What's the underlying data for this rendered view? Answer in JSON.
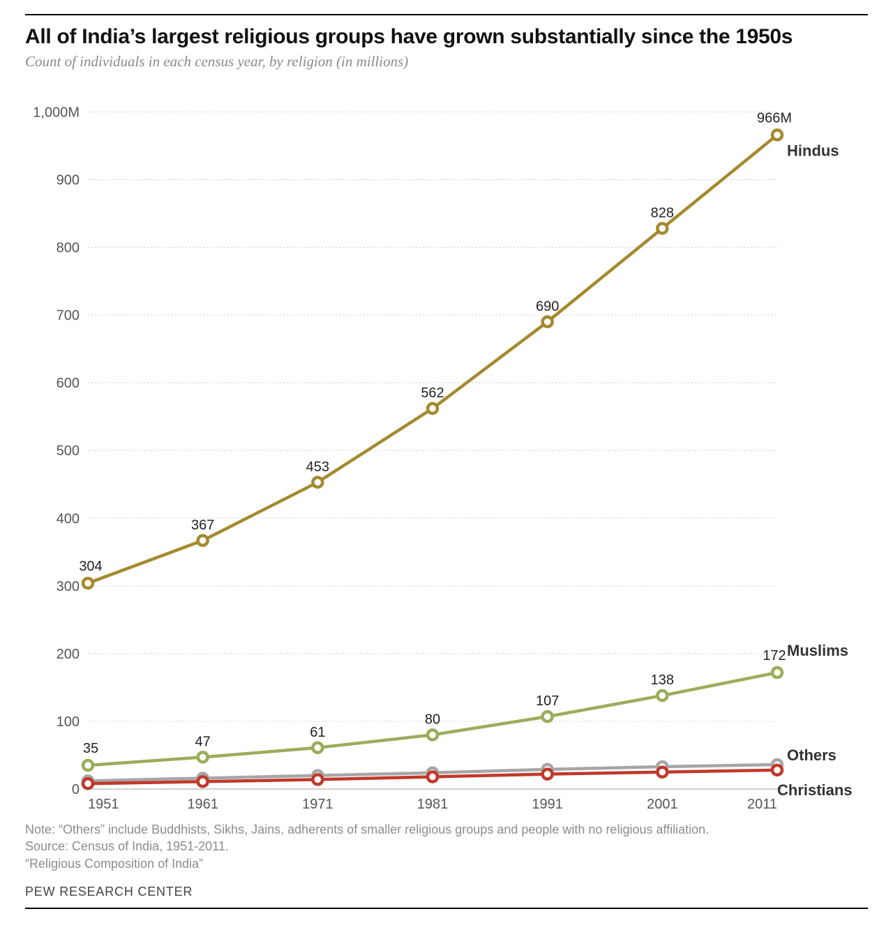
{
  "title": "All of India’s largest religious groups have grown substantially since the 1950s",
  "subtitle": "Count of individuals in each census year, by religion (in millions)",
  "footnote_note": "Note: “Others” include Buddhists, Sikhs, Jains, adherents of smaller religious groups and people with no religious affiliation.",
  "footnote_source": "Source: Census of India, 1951-2011.",
  "footnote_report": "“Religious Composition of India”",
  "org": "PEW RESEARCH CENTER",
  "chart": {
    "type": "line",
    "background_color": "#ffffff",
    "grid_color": "#d0d0d0",
    "axis_color": "#a0a0a0",
    "tick_label_color": "#555555",
    "tick_fontsize": 20,
    "value_label_fontsize": 20,
    "series_label_fontsize": 22,
    "line_width": 4.5,
    "marker_radius": 7,
    "marker_fill": "#ffffff",
    "x_categories": [
      "1951",
      "1961",
      "1971",
      "1981",
      "1991",
      "2001",
      "2011"
    ],
    "y_ticks": [
      0,
      100,
      200,
      300,
      400,
      500,
      600,
      700,
      800,
      900
    ],
    "y_top_label": "1,000M",
    "y_top_value": 1000,
    "ylim": [
      0,
      1020
    ],
    "series": [
      {
        "name": "Hindus",
        "color": "#a48a2f",
        "values": [
          304,
          367,
          453,
          562,
          690,
          828,
          966
        ],
        "show_values": true,
        "last_label": "966M",
        "label_side": "right",
        "label_color": "#333333"
      },
      {
        "name": "Muslims",
        "color": "#9aad5a",
        "values": [
          35,
          47,
          61,
          80,
          107,
          138,
          172
        ],
        "show_values": true,
        "last_label": "172",
        "label_side": "right",
        "label_color": "#333333"
      },
      {
        "name": "Others",
        "color": "#a6a6a6",
        "values": [
          12,
          16,
          20,
          24,
          29,
          33,
          36
        ],
        "show_values": false,
        "label_side": "right",
        "label_color": "#333333"
      },
      {
        "name": "Christians",
        "color": "#c0392b",
        "values": [
          8,
          11,
          14,
          18,
          22,
          25,
          28
        ],
        "show_values": false,
        "label_side": "right-below",
        "label_color": "#333333"
      }
    ]
  }
}
